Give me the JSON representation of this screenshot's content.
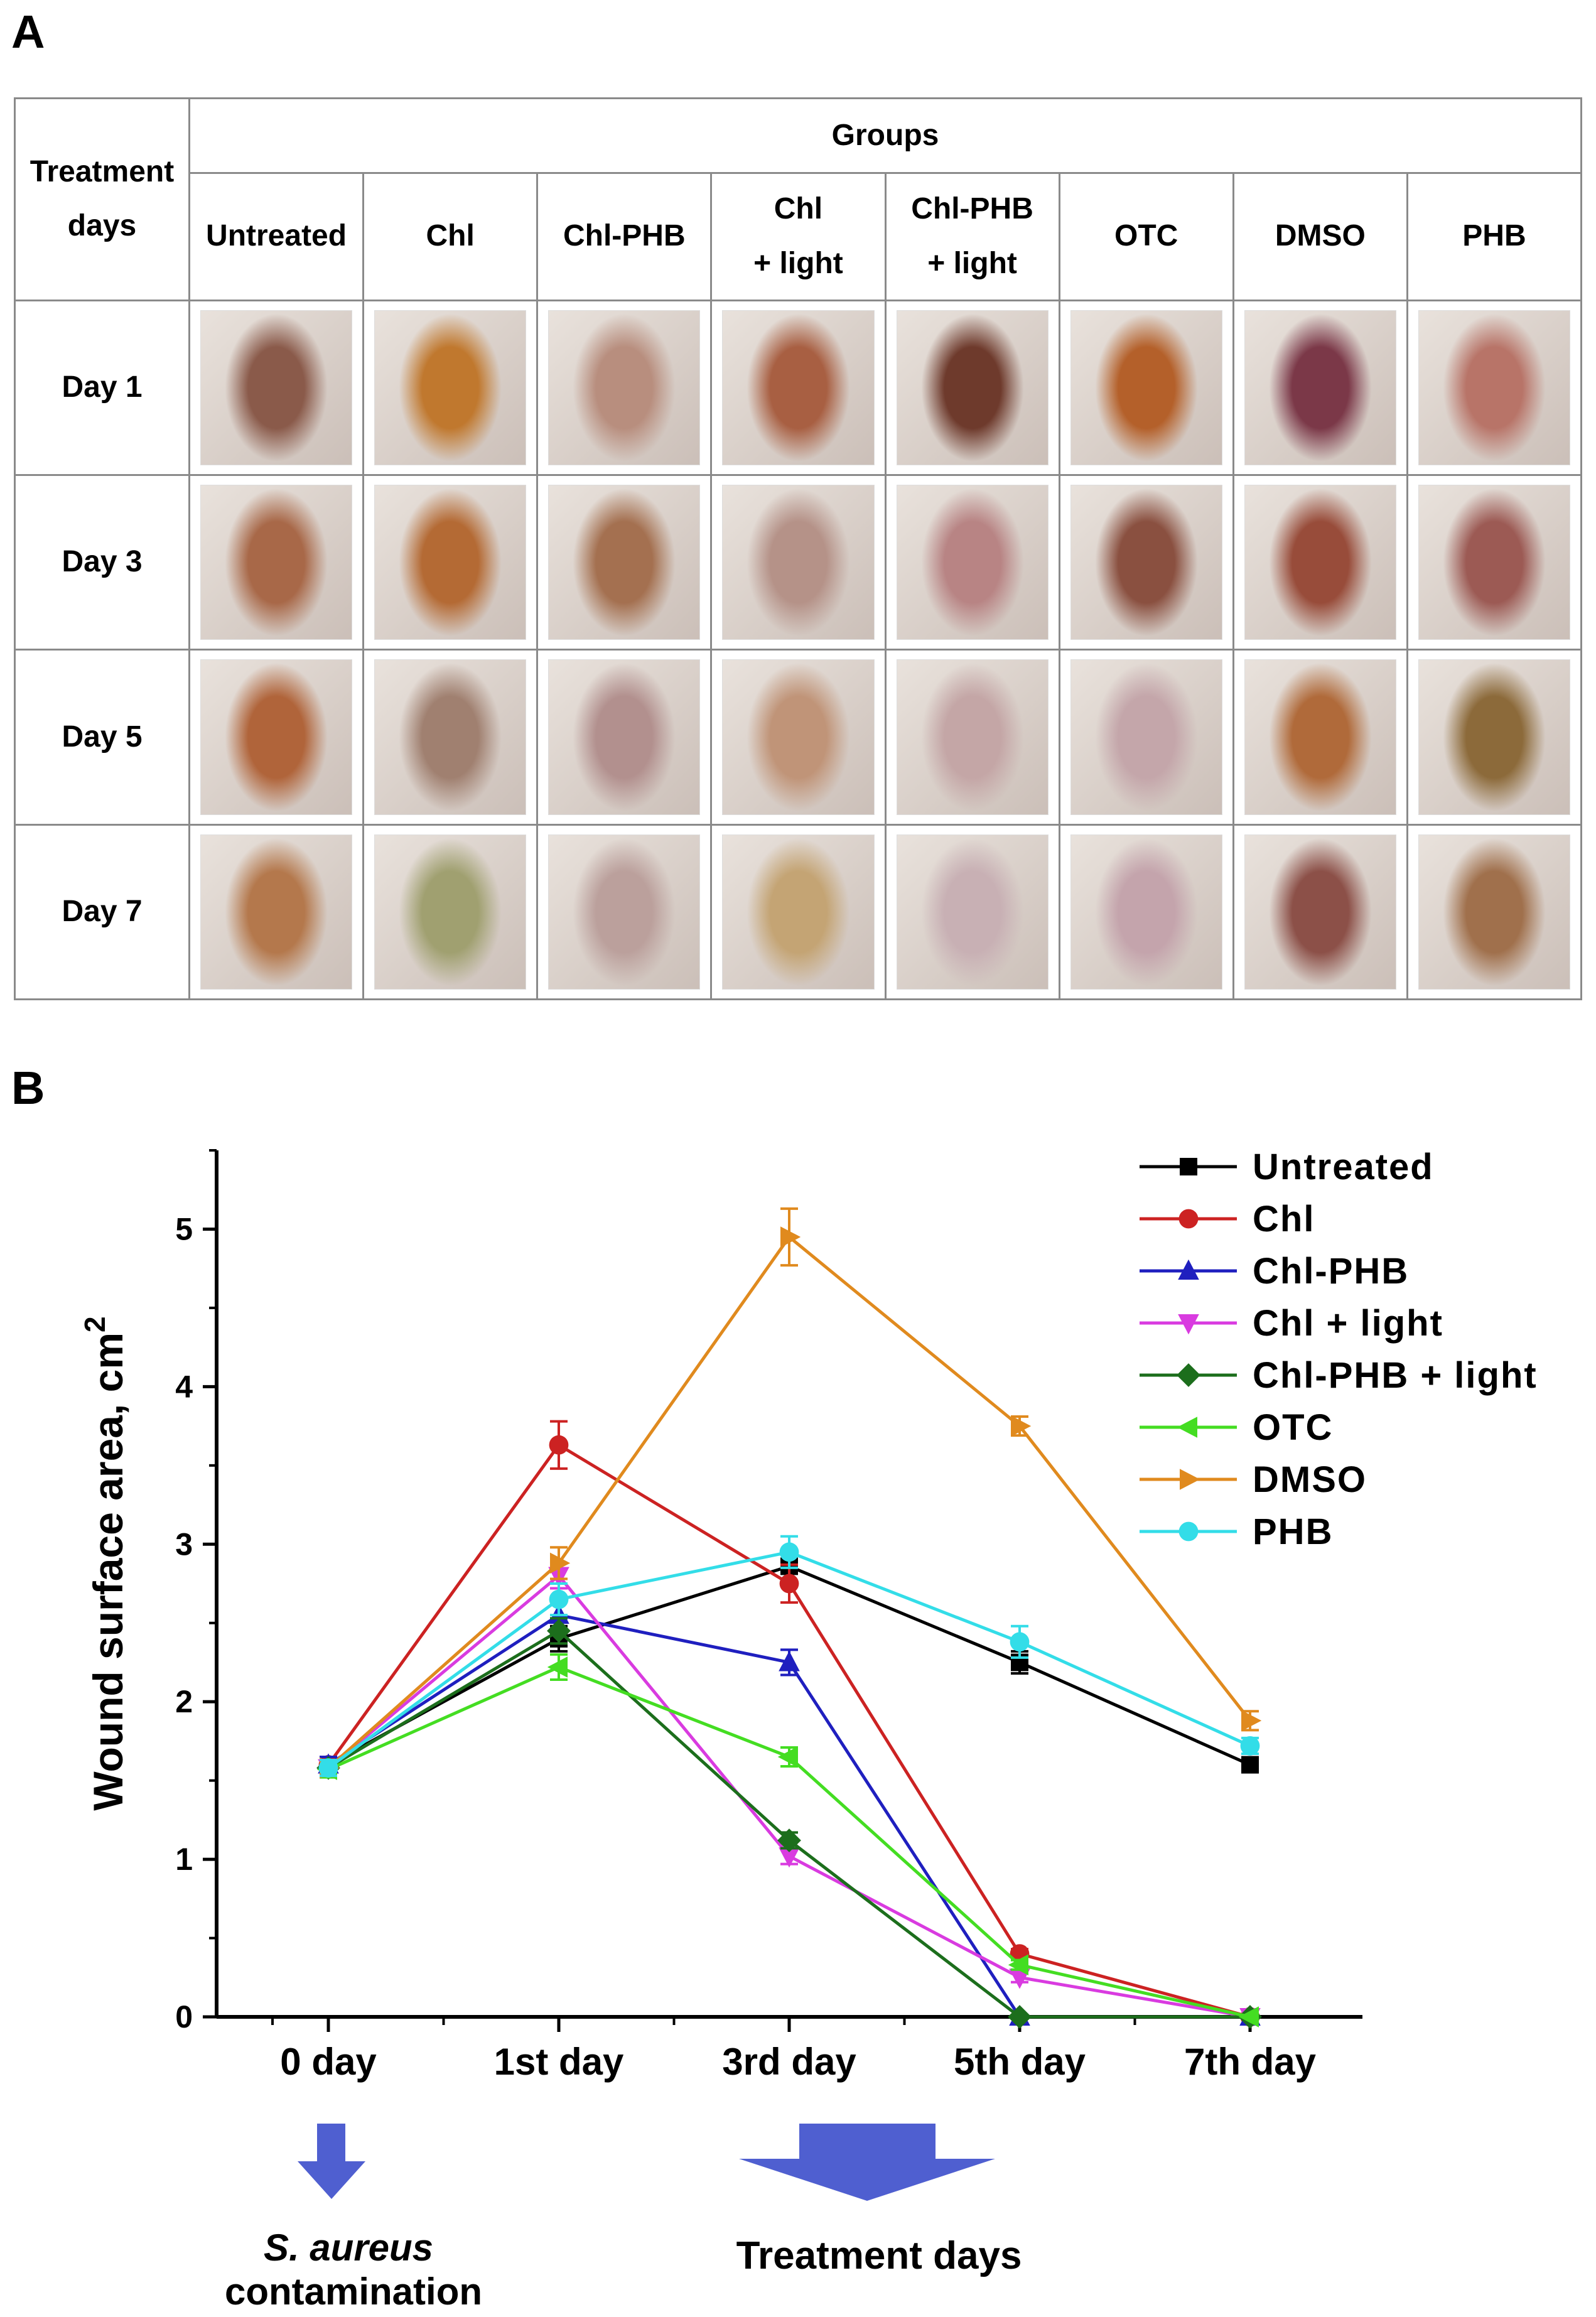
{
  "panel_a": {
    "letter": "A",
    "header_treatment": "Treatment\ndays",
    "header_groups": "Groups",
    "groups": [
      {
        "label": "Untreated"
      },
      {
        "label": "Chl"
      },
      {
        "label": "Chl-PHB"
      },
      {
        "label": "Chl\n+ light"
      },
      {
        "label": "Chl-PHB\n+ light"
      },
      {
        "label": "OTC"
      },
      {
        "label": "DMSO"
      },
      {
        "label": "PHB"
      }
    ],
    "rows": [
      {
        "label": "Day 1",
        "colors": [
          "#8a5a4a",
          "#c0782e",
          "#b88e7e",
          "#a85f42",
          "#6e3a2c",
          "#b4602a",
          "#7b3848",
          "#b87468"
        ]
      },
      {
        "label": "Day 3",
        "colors": [
          "#a86848",
          "#b46a34",
          "#a47050",
          "#b59288",
          "#b88484",
          "#8a5040",
          "#984c3a",
          "#9c5a54"
        ]
      },
      {
        "label": "Day 5",
        "colors": [
          "#b0643a",
          "#a08070",
          "#b2908e",
          "#c09478",
          "#c4a6a6",
          "#c4a6aa",
          "#b06a3a",
          "#8c6a3a"
        ]
      },
      {
        "label": "Day 7",
        "colors": [
          "#b4784c",
          "#a0a070",
          "#bba09c",
          "#c4a474",
          "#c8b0b4",
          "#c4a4ac",
          "#8c5048",
          "#a0704c"
        ]
      }
    ]
  },
  "panel_b": {
    "letter": "B",
    "annotations": {
      "contamination_line1": "S. aureus",
      "contamination_line2": "contamination",
      "treatment_days": "Treatment days"
    }
  },
  "colors": {
    "Untreated": "#000000",
    "Chl": "#cc2222",
    "Chl-PHB": "#1f1fbf",
    "Chl + light": "#d93be0",
    "Chl-PHB + light": "#1c6e1c",
    "OTC": "#44dd22",
    "DMSO": "#e08a1e",
    "PHB": "#33dde8",
    "arrow": "#4f5fd0"
  },
  "chart_data": {
    "type": "line",
    "title": "",
    "xlabel": "",
    "ylabel": "Wound surface area, cm",
    "ylabel_superscript": "2",
    "categories": [
      "0 day",
      "1st day",
      "3rd day",
      "5th day",
      "7th day"
    ],
    "ylim": [
      0,
      5.5
    ],
    "yticks": [
      0,
      1,
      2,
      3,
      4,
      5
    ],
    "legend_position": "top-right",
    "series": [
      {
        "name": "Untreated",
        "marker": "square",
        "values": [
          1.6,
          2.4,
          2.86,
          2.25,
          1.6
        ],
        "errors": [
          0.05,
          0.08,
          0.1,
          0.07,
          0.04
        ]
      },
      {
        "name": "Chl",
        "marker": "circle",
        "values": [
          1.6,
          3.63,
          2.75,
          0.4,
          0.0
        ],
        "errors": [
          0.05,
          0.15,
          0.12,
          0.03,
          0.01
        ]
      },
      {
        "name": "Chl-PHB",
        "marker": "triangle-up",
        "values": [
          1.6,
          2.55,
          2.25,
          0.0,
          0.0
        ],
        "errors": [
          0.05,
          0.1,
          0.08,
          0.01,
          0.01
        ]
      },
      {
        "name": "Chl + light",
        "marker": "triangle-down",
        "values": [
          1.58,
          2.8,
          1.02,
          0.25,
          0.0
        ],
        "errors": [
          0.05,
          0.08,
          0.05,
          0.03,
          0.01
        ]
      },
      {
        "name": "Chl-PHB + light",
        "marker": "diamond",
        "values": [
          1.58,
          2.45,
          1.12,
          0.0,
          0.0
        ],
        "errors": [
          0.05,
          0.08,
          0.05,
          0.01,
          0.01
        ]
      },
      {
        "name": "OTC",
        "marker": "triangle-left",
        "values": [
          1.57,
          2.22,
          1.65,
          0.33,
          0.0
        ],
        "errors": [
          0.05,
          0.08,
          0.06,
          0.03,
          0.01
        ]
      },
      {
        "name": "DMSO",
        "marker": "triangle-right",
        "values": [
          1.58,
          2.88,
          4.95,
          3.75,
          1.88
        ],
        "errors": [
          0.05,
          0.1,
          0.18,
          0.06,
          0.06
        ]
      },
      {
        "name": "PHB",
        "marker": "hexagon",
        "values": [
          1.58,
          2.65,
          2.95,
          2.38,
          1.72
        ],
        "errors": [
          0.05,
          0.1,
          0.1,
          0.1,
          0.05
        ]
      }
    ]
  }
}
